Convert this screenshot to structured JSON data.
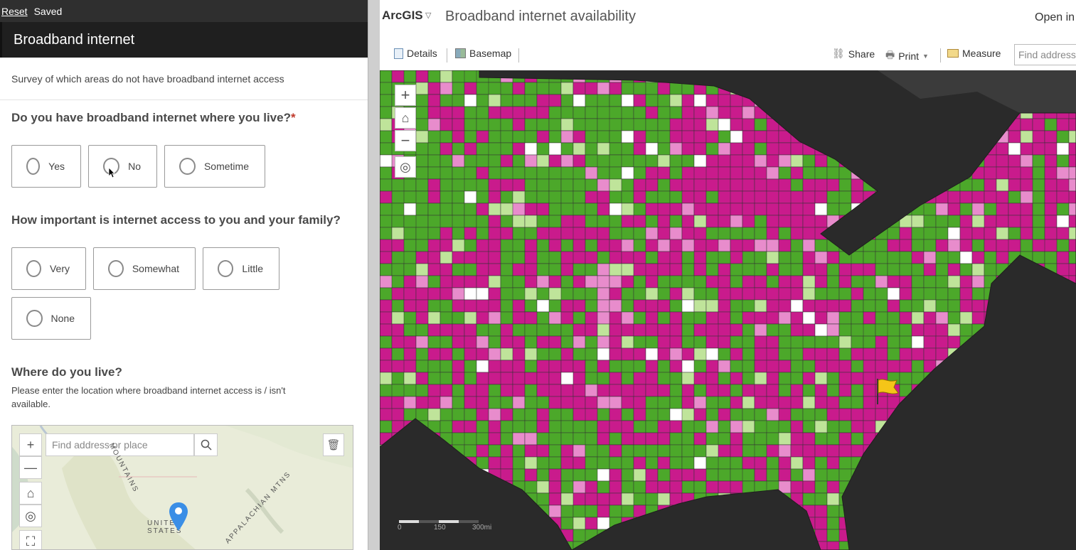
{
  "survey": {
    "topbar": {
      "reset_label": "Reset",
      "status": "Saved"
    },
    "title": "Broadband internet",
    "description": "Survey of which areas do not have broadband internet access",
    "q1": {
      "text": "Do you have broadband internet where you live?",
      "required_mark": "*",
      "options": [
        "Yes",
        "No",
        "Sometime"
      ]
    },
    "q2": {
      "text": "How important is internet access to you and your family?",
      "options": [
        "Very",
        "Somewhat",
        "Little",
        "None"
      ]
    },
    "q3": {
      "text": "Where do you live?",
      "hint": "Please enter the location where broadband internet access is / isn't available.",
      "map": {
        "search_placeholder": "Find address or place",
        "labels": {
          "mountains": "MOUNTAINS",
          "us": "UNITED STATES",
          "appalachian": "APPALACHIAN MTNS"
        }
      }
    }
  },
  "mapapp": {
    "brand": "ArcGIS",
    "title": "Broadband internet availability",
    "open_in": "Open in",
    "toolbar": {
      "details": "Details",
      "basemap": "Basemap",
      "share": "Share",
      "print": "Print",
      "measure": "Measure",
      "find_placeholder": "Find address"
    },
    "scale": {
      "l0": "0",
      "l1": "150",
      "l2": "300mi"
    },
    "colors": {
      "high": "#4ca82a",
      "light_green": "#bfe49a",
      "low": "#c91b8c",
      "pink": "#e88ccc",
      "none": "#ffffff",
      "water": "#2a2a2a"
    }
  }
}
